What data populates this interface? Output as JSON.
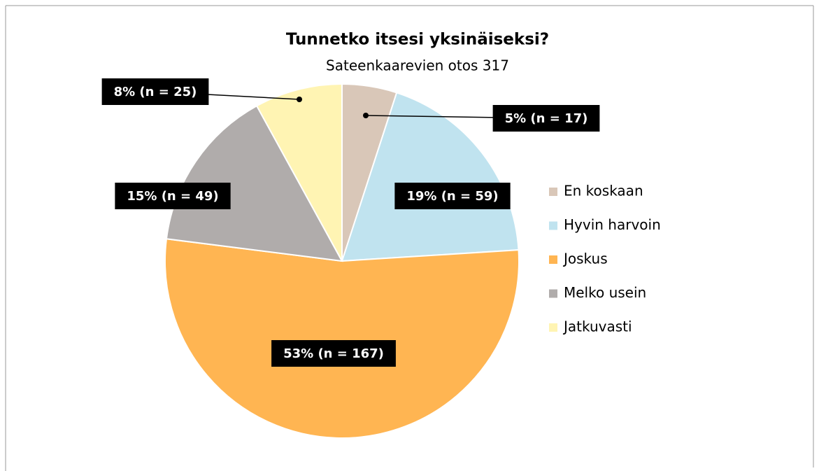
{
  "chart_data": {
    "type": "pie",
    "title": "Tunnetko itsesi yksinäiseksi?",
    "subtitle": "Sateenkaarevien otos 317",
    "categories": [
      "En koskaan",
      "Hyvin harvoin",
      "Joskus",
      "Melko usein",
      "Jatkuvasti"
    ],
    "values": [
      5,
      19,
      53,
      15,
      8
    ],
    "value_labels": [
      "5% (n = 17)",
      "19% (n = 59)",
      "53% (n = 167)",
      "15% (n = 49)",
      "8% (n = 25)"
    ],
    "colors": [
      "#d9c7b8",
      "#c0e3ef",
      "#ffb552",
      "#b0acab",
      "#fff4b3"
    ],
    "legend": "right"
  }
}
